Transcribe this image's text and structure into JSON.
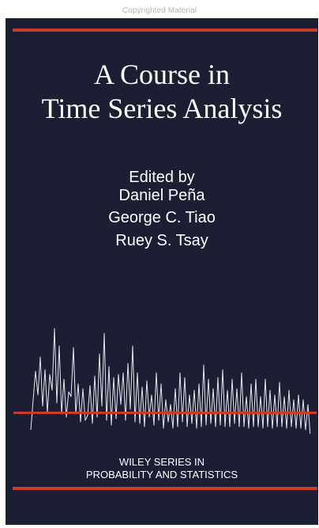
{
  "watermark": "Copyrighted Material",
  "title": {
    "line1": "A Course in",
    "line2": "Time Series Analysis"
  },
  "byline": {
    "edited_by": "Edited by",
    "editors": [
      "Daniel Peña",
      "George C. Tiao",
      "Ruey S. Tsay"
    ]
  },
  "series": {
    "line1": "WILEY SERIES IN",
    "line2": "PROBABILITY AND STATISTICS"
  },
  "colors": {
    "background": "#1c1f33",
    "rule": "#c93a2f",
    "text": "#ffffff",
    "series_line": "#e8e8ec"
  }
}
